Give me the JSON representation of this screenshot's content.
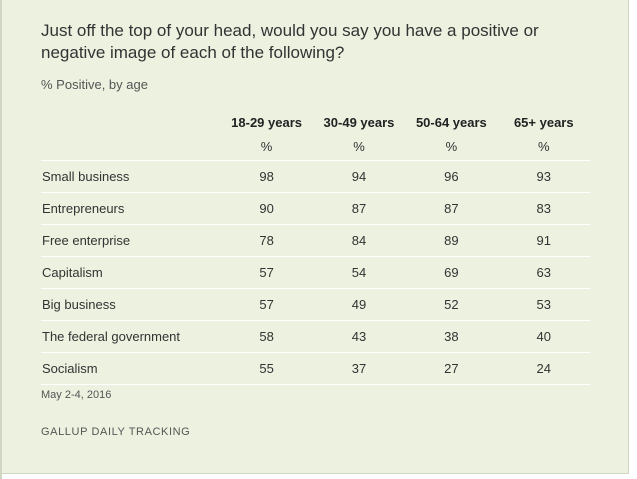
{
  "chart_data": {
    "type": "table",
    "title": "Just off the top of your head, would you say you have a positive or negative image of each of the following?",
    "subtitle": "% Positive, by age",
    "columns": [
      "18-29 years",
      "30-49 years",
      "50-64 years",
      "65+ years"
    ],
    "unit": "%",
    "rows": [
      {
        "label": "Small business",
        "values": [
          98,
          94,
          96,
          93
        ]
      },
      {
        "label": "Entrepreneurs",
        "values": [
          90,
          87,
          87,
          83
        ]
      },
      {
        "label": "Free enterprise",
        "values": [
          78,
          84,
          89,
          91
        ]
      },
      {
        "label": "Capitalism",
        "values": [
          57,
          54,
          69,
          63
        ]
      },
      {
        "label": "Big business",
        "values": [
          57,
          49,
          52,
          53
        ]
      },
      {
        "label": "The federal government",
        "values": [
          58,
          43,
          38,
          40
        ]
      },
      {
        "label": "Socialism",
        "values": [
          55,
          37,
          27,
          24
        ]
      }
    ],
    "note": "May 2-4, 2016",
    "source": "GALLUP DAILY TRACKING"
  },
  "colors": {
    "background": "#ecf1e0",
    "row_divider": "#ffffff",
    "text": "#333333"
  }
}
